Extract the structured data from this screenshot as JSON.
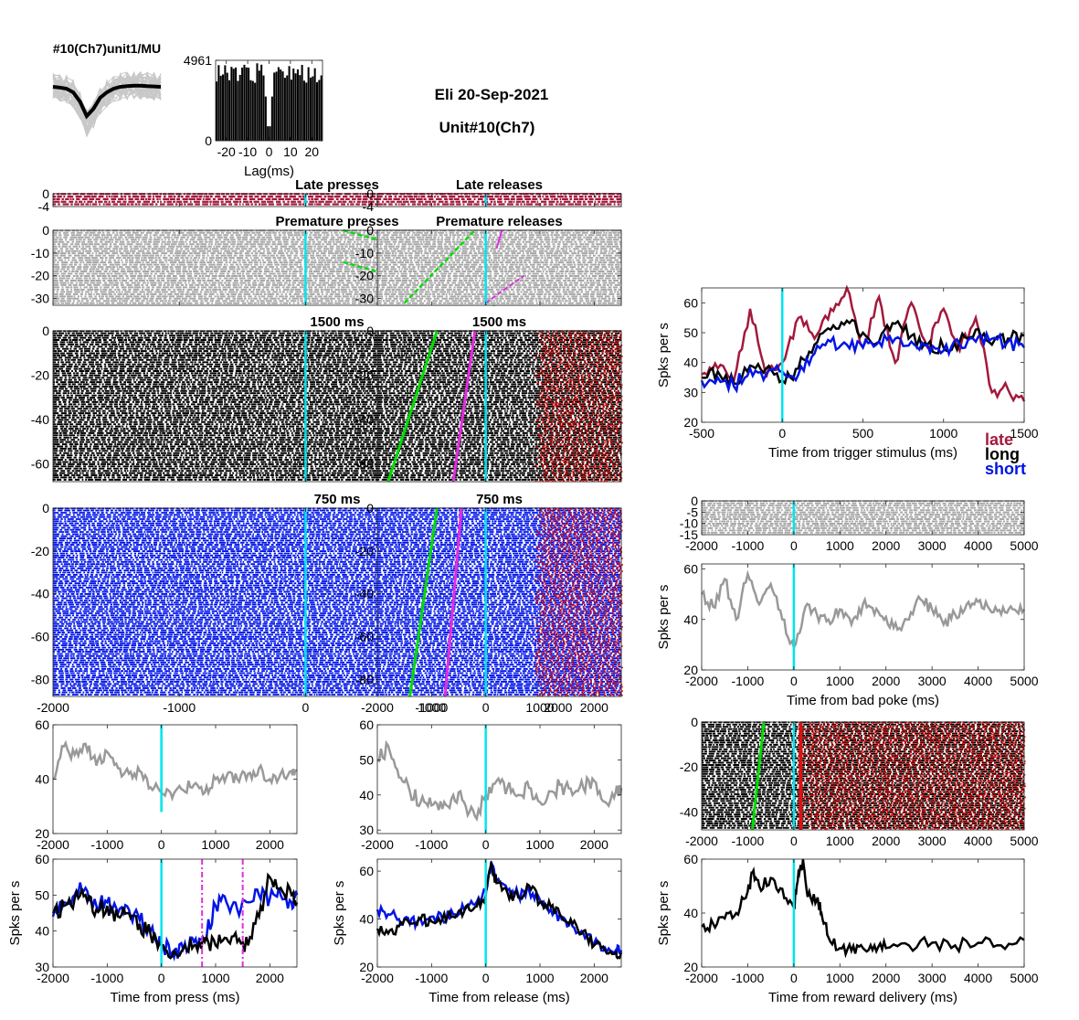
{
  "header": {
    "unit_label": "#10(Ch7)unit1/MU",
    "session": "Eli 20-Sep-2021",
    "unit": "Unit#10(Ch7)"
  },
  "colors": {
    "late": "#a3193c",
    "long": "#000000",
    "short": "#0014e6",
    "trigger": "#00e5ee",
    "release": "#00dd00",
    "press_marker": "#e22de0",
    "reward": "#e01010",
    "gray": "#999999",
    "raster_gray": "#a8a8a8"
  },
  "legend": {
    "late": "late",
    "long": "long",
    "short": "short"
  },
  "chart_data": [
    {
      "id": "waveform",
      "type": "line",
      "title": "#10(Ch7)unit1/MU",
      "mean": [
        0,
        -0.2,
        -0.5,
        -1.5,
        -4,
        -8,
        -6,
        -3,
        -1.5,
        -0.5,
        0,
        0.2,
        0.3,
        0.3,
        0.2,
        0.1,
        0
      ]
    },
    {
      "id": "autocorr",
      "type": "bar",
      "xlabel": "Lag(ms)",
      "xticks": [
        -20,
        -10,
        0,
        10,
        20
      ],
      "xlim": [
        -25,
        25
      ],
      "yticks": [
        0,
        4961
      ],
      "ylim": [
        0,
        4961
      ]
    },
    {
      "id": "late_presses",
      "type": "raster",
      "title": "Late presses",
      "xlim": [
        -2000,
        2500
      ],
      "ylim": [
        -4,
        0
      ],
      "yticks": [
        0,
        -4
      ],
      "color": "late"
    },
    {
      "id": "late_releases",
      "type": "raster",
      "title": "Late releases",
      "xlim": [
        -2000,
        2500
      ],
      "ylim": [
        -4,
        0
      ],
      "yticks": [
        0,
        -4
      ],
      "color": "late"
    },
    {
      "id": "premature_presses",
      "type": "raster",
      "title": "Premature presses",
      "xlim": [
        -2000,
        2500
      ],
      "ylim": [
        -33,
        0
      ],
      "yticks": [
        0,
        -10,
        -20,
        -30
      ],
      "color": "gray"
    },
    {
      "id": "premature_releases",
      "type": "raster",
      "title": "Premature releases",
      "xlim": [
        -2000,
        2500
      ],
      "ylim": [
        -33,
        0
      ],
      "yticks": [
        0,
        -10,
        -20,
        -30
      ],
      "color": "gray"
    },
    {
      "id": "long_presses",
      "type": "raster",
      "title": "1500 ms",
      "xlim": [
        -2000,
        2500
      ],
      "ylim": [
        -68,
        0
      ],
      "yticks": [
        0,
        -20,
        -40,
        -60
      ],
      "color": "long"
    },
    {
      "id": "long_releases",
      "type": "raster",
      "title": "1500 ms",
      "xlim": [
        -2000,
        2500
      ],
      "ylim": [
        -68,
        0
      ],
      "yticks": [
        0,
        -20,
        -40,
        -60
      ],
      "color": "long"
    },
    {
      "id": "short_presses",
      "type": "raster",
      "title": "750 ms",
      "xlim": [
        -2000,
        2500
      ],
      "ylim": [
        -88,
        0
      ],
      "yticks": [
        0,
        -20,
        -40,
        -60,
        -80
      ],
      "xticks": [
        -2000,
        -1000,
        0,
        1000,
        2000
      ],
      "color": "short"
    },
    {
      "id": "short_releases",
      "type": "raster",
      "title": "750 ms",
      "xlim": [
        -2000,
        2500
      ],
      "ylim": [
        -88,
        0
      ],
      "yticks": [
        0,
        -20,
        -40,
        -60,
        -80
      ],
      "xticks": [
        -2000,
        -1000,
        0,
        1000,
        2000
      ],
      "color": "short"
    },
    {
      "id": "premature_press_psth",
      "type": "line",
      "xlim": [
        -2000,
        2500
      ],
      "ylim": [
        20,
        60
      ],
      "yticks": [
        20,
        40,
        60
      ],
      "xticks": [
        -2000,
        -1000,
        0,
        1000,
        2000
      ],
      "series": [
        {
          "color": "gray",
          "x": [
            -2000,
            -1800,
            -1600,
            -1400,
            -1200,
            -1000,
            -800,
            -600,
            -400,
            -200,
            0,
            200,
            400,
            600,
            800,
            1000,
            1200,
            1400,
            1600,
            1800,
            2000,
            2200,
            2400,
            2500
          ],
          "y": [
            40,
            52,
            49,
            53,
            45,
            50,
            44,
            42,
            43,
            37,
            35,
            33,
            36,
            38,
            35,
            40,
            41,
            40,
            42,
            44,
            40,
            42,
            43,
            43
          ]
        }
      ]
    },
    {
      "id": "premature_release_psth",
      "type": "line",
      "xlim": [
        -2000,
        2500
      ],
      "ylim": [
        29,
        60
      ],
      "yticks": [
        30,
        40,
        50,
        60
      ],
      "xticks": [
        -2000,
        -1000,
        0,
        1000,
        2000
      ],
      "series": [
        {
          "color": "gray",
          "x": [
            -2000,
            -1800,
            -1600,
            -1400,
            -1200,
            -1000,
            -800,
            -600,
            -400,
            -200,
            0,
            200,
            400,
            600,
            800,
            1000,
            1200,
            1400,
            1600,
            1800,
            2000,
            2200,
            2400,
            2500
          ],
          "y": [
            50,
            54,
            45,
            41,
            38,
            37,
            36,
            40,
            38,
            34,
            40,
            44,
            42,
            40,
            42,
            38,
            41,
            43,
            40,
            42,
            44,
            38,
            41,
            42
          ]
        }
      ]
    },
    {
      "id": "press_psth",
      "type": "line",
      "xlim": [
        -2000,
        2500
      ],
      "ylim": [
        30,
        60
      ],
      "yticks": [
        30,
        40,
        50,
        60
      ],
      "xticks": [
        -2000,
        -1000,
        0,
        1000,
        2000
      ],
      "xlabel": "Time from press (ms)",
      "ylabel": "Spks per s",
      "markers": [
        0,
        750,
        1500
      ],
      "series": [
        {
          "color": "short",
          "x": [
            -2000,
            -1800,
            -1600,
            -1400,
            -1200,
            -1000,
            -800,
            -600,
            -400,
            -200,
            0,
            200,
            400,
            600,
            800,
            1000,
            1200,
            1400,
            1600,
            1800,
            2000,
            2200,
            2400,
            2500
          ],
          "y": [
            44,
            48,
            50,
            52,
            47,
            48,
            45,
            46,
            43,
            40,
            36,
            34,
            35,
            37,
            38,
            47,
            48,
            46,
            48,
            50,
            49,
            50,
            48,
            50
          ]
        },
        {
          "color": "long",
          "x": [
            -2000,
            -1800,
            -1600,
            -1400,
            -1200,
            -1000,
            -800,
            -600,
            -400,
            -200,
            0,
            200,
            400,
            600,
            800,
            1000,
            1200,
            1400,
            1600,
            1800,
            2000,
            2200,
            2400,
            2500
          ],
          "y": [
            45,
            47,
            49,
            50,
            46,
            47,
            44,
            45,
            42,
            39,
            36,
            33,
            35,
            36,
            37,
            36,
            38,
            37,
            36,
            44,
            55,
            52,
            50,
            48
          ]
        }
      ]
    },
    {
      "id": "release_psth",
      "type": "line",
      "xlim": [
        -2000,
        2500
      ],
      "ylim": [
        20,
        65
      ],
      "yticks": [
        20,
        40,
        60
      ],
      "xticks": [
        -2000,
        -1000,
        0,
        1000,
        2000
      ],
      "xlabel": "Time from release (ms)",
      "ylabel": "Spks per s",
      "markers": [
        0
      ],
      "series": [
        {
          "color": "short",
          "x": [
            -2000,
            -1800,
            -1600,
            -1400,
            -1200,
            -1000,
            -800,
            -600,
            -400,
            -200,
            0,
            100,
            200,
            400,
            600,
            800,
            1000,
            1200,
            1400,
            1600,
            1800,
            2000,
            2200,
            2400,
            2500
          ],
          "y": [
            44,
            42,
            40,
            38,
            40,
            41,
            40,
            42,
            44,
            46,
            52,
            64,
            56,
            52,
            50,
            52,
            48,
            44,
            40,
            37,
            34,
            30,
            28,
            27,
            27
          ]
        },
        {
          "color": "long",
          "x": [
            -2000,
            -1800,
            -1600,
            -1400,
            -1200,
            -1000,
            -800,
            -600,
            -400,
            -200,
            0,
            100,
            200,
            400,
            600,
            800,
            1000,
            1200,
            1400,
            1600,
            1800,
            2000,
            2200,
            2400,
            2500
          ],
          "y": [
            36,
            34,
            37,
            38,
            40,
            39,
            40,
            41,
            43,
            45,
            50,
            63,
            55,
            51,
            49,
            54,
            47,
            45,
            41,
            38,
            35,
            29,
            27,
            26,
            26
          ]
        }
      ]
    },
    {
      "id": "trigger_psth",
      "type": "line",
      "xlim": [
        -500,
        1500
      ],
      "ylim": [
        20,
        65
      ],
      "yticks": [
        20,
        30,
        40,
        50,
        60
      ],
      "xticks": [
        -500,
        0,
        500,
        1000,
        1500
      ],
      "xlabel": "Time from trigger stimulus (ms)",
      "ylabel": "Spks per s",
      "markers": [
        0
      ],
      "series": [
        {
          "name": "late",
          "color": "late",
          "x": [
            -500,
            -400,
            -300,
            -200,
            -100,
            0,
            100,
            200,
            300,
            400,
            500,
            600,
            700,
            800,
            900,
            1000,
            1100,
            1200,
            1300,
            1400,
            1500
          ],
          "y": [
            36,
            38,
            34,
            58,
            35,
            40,
            55,
            48,
            58,
            65,
            45,
            62,
            40,
            60,
            45,
            58,
            44,
            55,
            30,
            31,
            27
          ]
        },
        {
          "name": "long",
          "color": "long",
          "x": [
            -500,
            -400,
            -300,
            -200,
            -100,
            0,
            100,
            200,
            300,
            400,
            500,
            600,
            700,
            800,
            900,
            1000,
            1100,
            1200,
            1300,
            1400,
            1500
          ],
          "y": [
            35,
            37,
            33,
            39,
            38,
            34,
            38,
            46,
            51,
            54,
            50,
            47,
            53,
            49,
            46,
            45,
            47,
            51,
            46,
            48,
            49
          ]
        },
        {
          "name": "short",
          "color": "short",
          "x": [
            -500,
            -400,
            -300,
            -200,
            -100,
            0,
            100,
            200,
            300,
            400,
            500,
            600,
            700,
            800,
            900,
            1000,
            1100,
            1200,
            1300,
            1400,
            1500
          ],
          "y": [
            34,
            35,
            32,
            38,
            36,
            37,
            36,
            43,
            47,
            46,
            45,
            47,
            48,
            47,
            46,
            44,
            46,
            47,
            48,
            47,
            45
          ]
        }
      ]
    },
    {
      "id": "bad_poke_raster",
      "type": "raster",
      "xlim": [
        -2000,
        5000
      ],
      "ylim": [
        -15,
        0
      ],
      "yticks": [
        0,
        -5,
        -10,
        -15
      ],
      "xticks": [
        -2000,
        -1000,
        0,
        1000,
        2000,
        3000,
        4000,
        5000
      ],
      "color": "gray"
    },
    {
      "id": "bad_poke_psth",
      "type": "line",
      "xlim": [
        -2000,
        5000
      ],
      "ylim": [
        20,
        62
      ],
      "yticks": [
        20,
        40,
        60
      ],
      "xticks": [
        -2000,
        -1000,
        0,
        1000,
        2000,
        3000,
        4000,
        5000
      ],
      "xlabel": "Time from bad poke (ms)",
      "ylabel": "Spks per s",
      "markers": [
        0
      ],
      "series": [
        {
          "color": "gray",
          "x": [
            -2000,
            -1750,
            -1500,
            -1250,
            -1000,
            -750,
            -500,
            -250,
            0,
            250,
            500,
            750,
            1000,
            1250,
            1500,
            1750,
            2000,
            2250,
            2500,
            2750,
            3000,
            3250,
            3500,
            3750,
            4000,
            4250,
            4500,
            4750,
            5000
          ],
          "y": [
            50,
            45,
            56,
            40,
            58,
            46,
            54,
            40,
            29,
            45,
            42,
            40,
            44,
            38,
            46,
            42,
            41,
            36,
            40,
            48,
            44,
            38,
            42,
            46,
            47,
            44,
            42,
            44,
            44
          ]
        }
      ]
    },
    {
      "id": "reward_raster",
      "type": "raster",
      "xlim": [
        -2000,
        5000
      ],
      "ylim": [
        -48,
        0
      ],
      "yticks": [
        0,
        -20,
        -40
      ],
      "xticks": [
        -2000,
        -1000,
        0,
        1000,
        2000,
        3000,
        4000,
        5000
      ],
      "color": "long"
    },
    {
      "id": "reward_psth",
      "type": "line",
      "xlim": [
        -2000,
        5000
      ],
      "ylim": [
        20,
        60
      ],
      "yticks": [
        20,
        40,
        60
      ],
      "xticks": [
        -2000,
        -1000,
        0,
        1000,
        2000,
        3000,
        4000,
        5000
      ],
      "xlabel": "Time from reward delivery (ms)",
      "ylabel": "Spks per s",
      "markers": [
        0
      ],
      "series": [
        {
          "color": "long",
          "x": [
            -2000,
            -1750,
            -1500,
            -1250,
            -1000,
            -900,
            -750,
            -500,
            -250,
            0,
            100,
            200,
            300,
            500,
            600,
            750,
            1000,
            1250,
            1500,
            1750,
            2000,
            2500,
            3000,
            3500,
            4000,
            4500,
            5000
          ],
          "y": [
            35,
            36,
            38,
            40,
            48,
            55,
            50,
            53,
            49,
            42,
            55,
            60,
            46,
            45,
            40,
            31,
            27,
            26,
            27,
            28,
            27,
            28,
            29,
            28,
            29,
            28,
            30
          ]
        }
      ]
    }
  ]
}
